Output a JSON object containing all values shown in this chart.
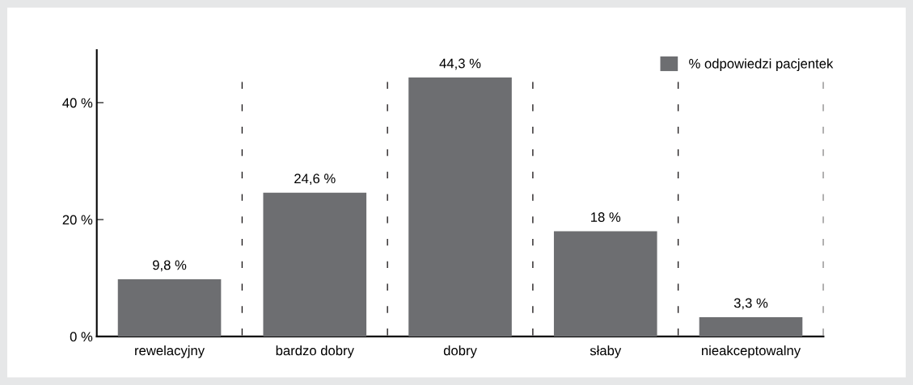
{
  "chart_data": {
    "type": "bar",
    "categories": [
      "rewelacyjny",
      "bardzo dobry",
      "dobry",
      "słaby",
      "nieakceptowalny"
    ],
    "series": [
      {
        "name": "% odpowiedzi pacjentek",
        "color": "#6d6e71",
        "values": [
          9.8,
          24.6,
          44.3,
          18,
          3.3
        ],
        "value_labels": [
          "9,8 %",
          "24,6 %",
          "44,3 %",
          "18 %",
          "3,3 %"
        ]
      }
    ],
    "ylim": [
      0,
      49
    ],
    "yticks": [
      {
        "value": 0,
        "label": "0 %"
      },
      {
        "value": 20,
        "label": "20 %"
      },
      {
        "value": 40,
        "label": "40 %"
      }
    ],
    "grid": "x",
    "legend": "top right"
  }
}
